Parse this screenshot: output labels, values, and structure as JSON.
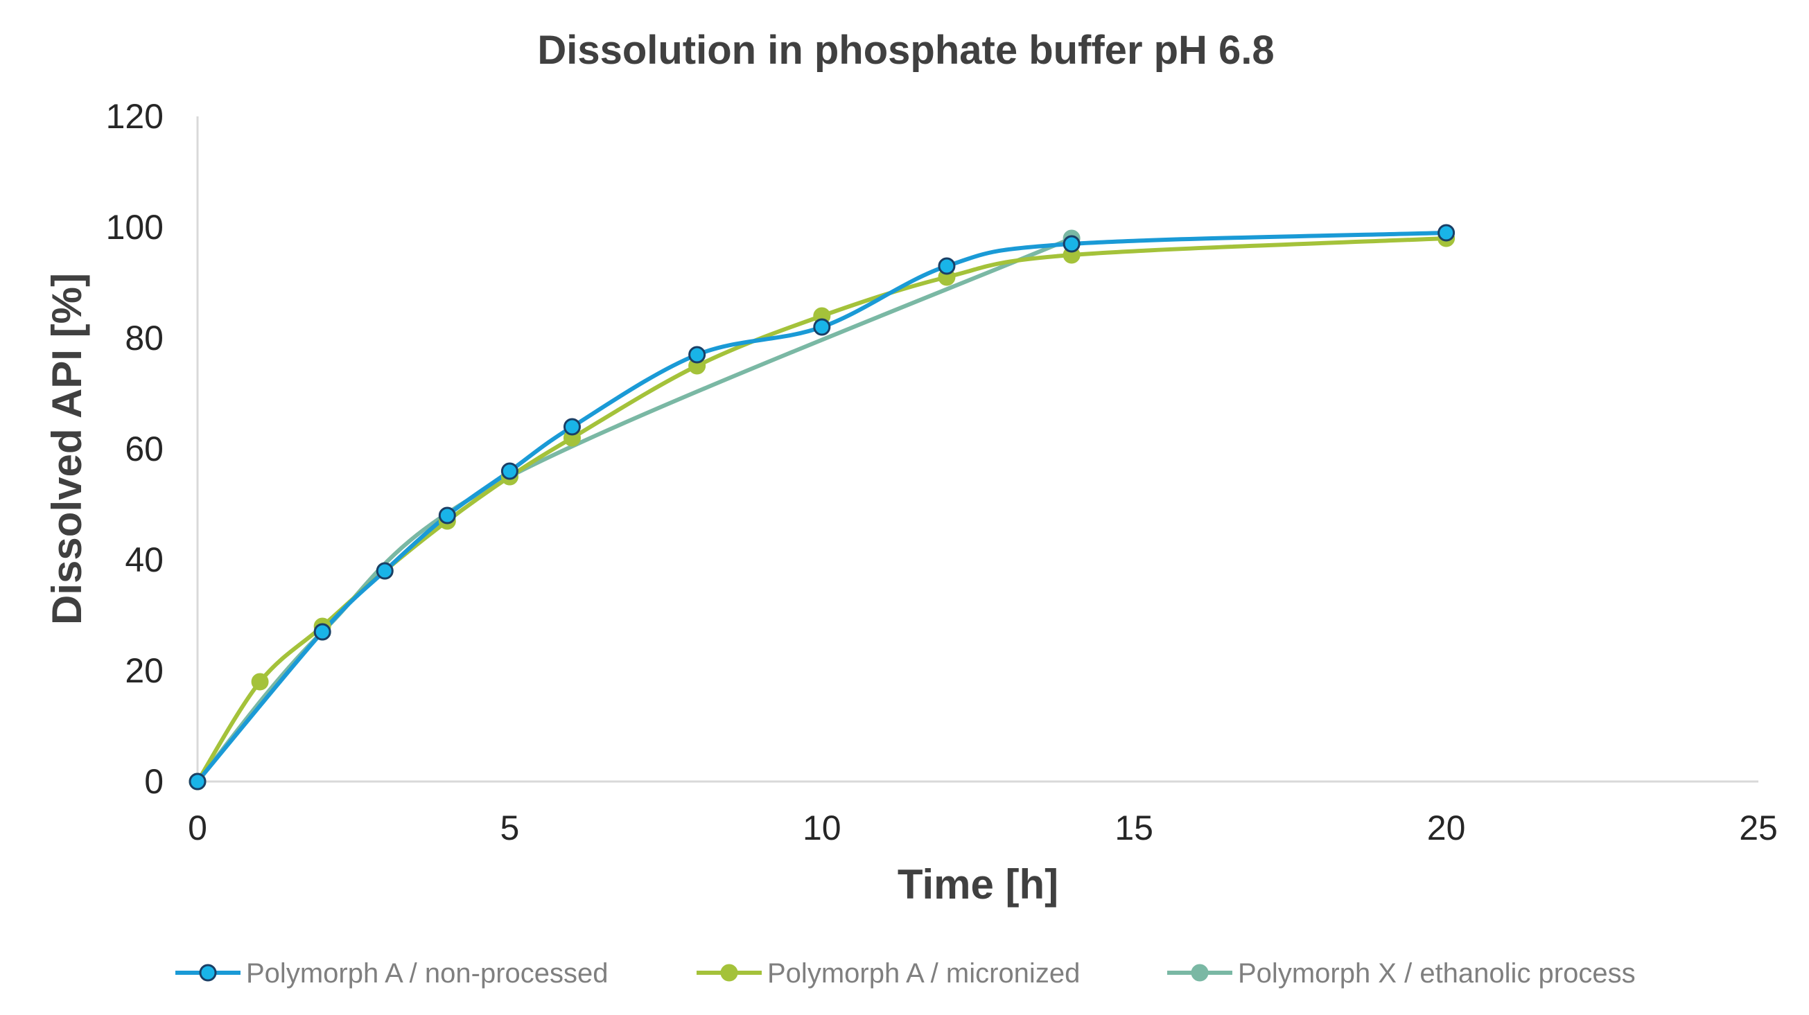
{
  "chart_data": {
    "type": "line",
    "title": "Dissolution in phosphate buffer pH 6.8",
    "xlabel": "Time [h]",
    "ylabel": "Dissolved API [%]",
    "xlim": [
      0,
      25
    ],
    "ylim": [
      0,
      120
    ],
    "xticks": [
      "0",
      "5",
      "10",
      "15",
      "20",
      "25"
    ],
    "yticks": [
      "0",
      "20",
      "40",
      "60",
      "80",
      "100",
      "120"
    ],
    "grid": false,
    "smooth": true,
    "legend": "bottom",
    "series": [
      {
        "name": "Polymorph A / non-processed",
        "color": "#1a9ad6",
        "marker_fill": "#19b4e8",
        "marker_stroke": "#1a3f66",
        "points": [
          [
            0,
            0
          ],
          [
            2,
            27
          ],
          [
            3,
            38
          ],
          [
            4,
            48
          ],
          [
            5,
            56
          ],
          [
            6,
            64
          ],
          [
            8,
            77
          ],
          [
            10,
            82
          ],
          [
            12,
            93
          ],
          [
            14,
            97
          ],
          [
            20,
            99
          ]
        ]
      },
      {
        "name": "Polymorph A / micronized",
        "color": "#a4c23a",
        "marker_fill": "#a4c23a",
        "marker_stroke": "#a4c23a",
        "points": [
          [
            0,
            0
          ],
          [
            1,
            18
          ],
          [
            2,
            28
          ],
          [
            3,
            38
          ],
          [
            4,
            47
          ],
          [
            5,
            55
          ],
          [
            6,
            62
          ],
          [
            8,
            75
          ],
          [
            10,
            84
          ],
          [
            12,
            91
          ],
          [
            14,
            95
          ],
          [
            20,
            98
          ]
        ]
      },
      {
        "name": "Polymorph X / ethanolic process",
        "color": "#7ab8a4",
        "marker_fill": "#7ab8a4",
        "marker_stroke": "#7ab8a4",
        "points": [
          [
            0,
            0
          ],
          [
            2,
            27
          ],
          [
            5,
            55
          ],
          [
            14,
            98
          ]
        ]
      }
    ]
  }
}
